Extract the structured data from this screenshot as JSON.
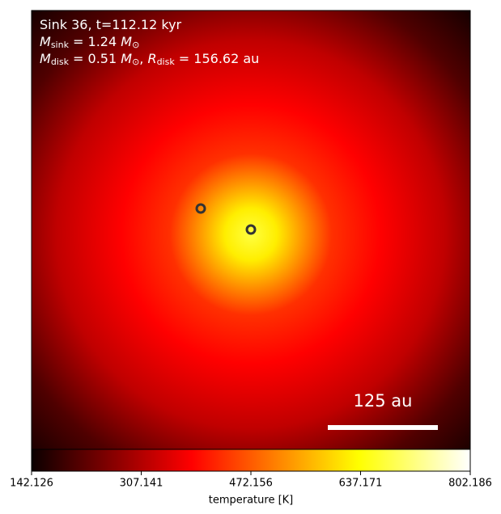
{
  "chart_data": {
    "type": "heatmap",
    "annotations": [
      [
        "Sink 36, t=112.12 kyr"
      ],
      [
        "M",
        "sink",
        " = 1.24 ",
        "M",
        "⊙"
      ],
      [
        "M",
        "disk",
        " = 0.51 ",
        "M",
        "⊙",
        ", ",
        "R",
        "disk",
        " = 156.62 au"
      ]
    ],
    "scale_bar": "125 au",
    "colormap": "hot",
    "colorbar": {
      "label": "temperature [K]",
      "lim": [
        142.126,
        802.186
      ],
      "ticks": [
        142.126,
        307.141,
        472.156,
        637.171,
        802.186
      ]
    }
  }
}
